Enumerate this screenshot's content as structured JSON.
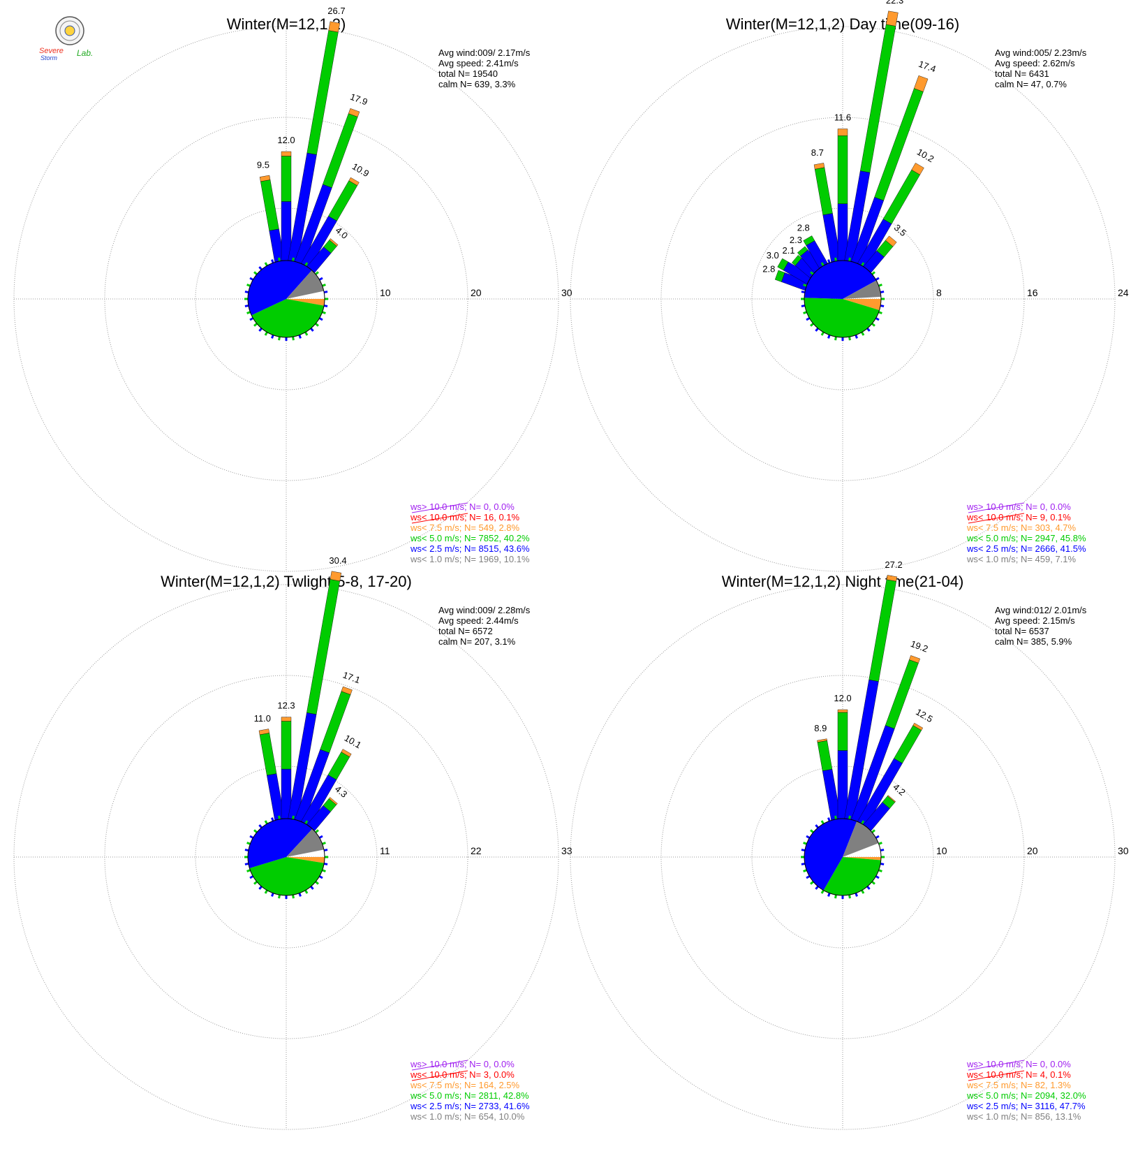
{
  "logo": {
    "line1": "Severe",
    "line2": "Storm",
    "line3": "Lab."
  },
  "colors": {
    "gt10": "#a020f0",
    "lt10": "#ff0000",
    "lt75": "#ff9a2e",
    "lt5": "#00cc00",
    "lt25": "#0000ff",
    "lt1": "#808080",
    "grid": "#999999"
  },
  "chart_data": [
    {
      "type": "windrose",
      "title": "Winter(M=12,1,2)",
      "rings": [
        "10",
        "20",
        "30"
      ],
      "rmax": 30,
      "directions_deg": [
        0,
        10,
        20,
        30,
        40,
        50,
        60
      ],
      "direction_totals": [
        12.0,
        26.7,
        17.9,
        10.9,
        4.0,
        null,
        null
      ],
      "extra_spokes": [
        {
          "deg": -10,
          "value": 9.5
        }
      ],
      "stats": {
        "avg_wind": "Avg wind:009/ 2.17m/s",
        "avg_speed": "Avg speed: 2.41m/s",
        "total": "total N=      19540",
        "calm": "calm N=    639,   3.3%"
      },
      "legend": [
        {
          "label": "ws> 10.0 m/s; N=     0,  0.0%",
          "color": "#a020f0"
        },
        {
          "label": "ws< 10.0 m/s; N=    16,  0.1%",
          "color": "#ff0000"
        },
        {
          "label": "ws<  7.5 m/s; N=   549,  2.8%",
          "color": "#ff9a2e"
        },
        {
          "label": "ws<  5.0 m/s; N=  7852, 40.2%",
          "color": "#00cc00"
        },
        {
          "label": "ws<  2.5 m/s; N=  8515, 43.6%",
          "color": "#0000ff"
        },
        {
          "label": "ws<  1.0 m/s; N=  1969, 10.1%",
          "color": "#808080"
        }
      ],
      "center_pie_percent": {
        "gray": 10.1,
        "orange": 2.8,
        "green": 40.2,
        "blue": 43.6
      }
    },
    {
      "type": "windrose",
      "title": "Winter(M=12,1,2) Day time(09-16)",
      "rings": [
        "8",
        "16",
        "24"
      ],
      "rmax": 24,
      "stats": {
        "avg_wind": "Avg wind:005/ 2.23m/s",
        "avg_speed": "Avg speed: 2.62m/s",
        "total": "total N=        6431",
        "calm": "calm N=      47,   0.7%"
      },
      "legend": [
        {
          "label": "ws> 10.0 m/s; N=     0,  0.0%",
          "color": "#a020f0"
        },
        {
          "label": "ws< 10.0 m/s; N=     9,  0.1%",
          "color": "#ff0000"
        },
        {
          "label": "ws<  7.5 m/s; N=   303,  4.7%",
          "color": "#ff9a2e"
        },
        {
          "label": "ws<  5.0 m/s; N=  2947, 45.8%",
          "color": "#00cc00"
        },
        {
          "label": "ws<  2.5 m/s; N=  2666, 41.5%",
          "color": "#0000ff"
        },
        {
          "label": "ws<  1.0 m/s; N=   459,  7.1%",
          "color": "#808080"
        }
      ],
      "center_pie_percent": {
        "gray": 7.1,
        "orange": 4.7,
        "green": 45.8,
        "blue": 41.5
      }
    },
    {
      "type": "windrose",
      "title": "Winter(M=12,1,2) Twlight(5-8, 17-20)",
      "rings": [
        "11",
        "22",
        "33"
      ],
      "rmax": 33,
      "stats": {
        "avg_wind": "Avg wind:009/ 2.28m/s",
        "avg_speed": "Avg speed: 2.44m/s",
        "total": "total N=        6572",
        "calm": "calm N=    207,   3.1%"
      },
      "legend": [
        {
          "label": "ws> 10.0 m/s; N=     0,  0.0%",
          "color": "#a020f0"
        },
        {
          "label": "ws< 10.0 m/s; N=     3,  0.0%",
          "color": "#ff0000"
        },
        {
          "label": "ws<  7.5 m/s; N=   164,  2.5%",
          "color": "#ff9a2e"
        },
        {
          "label": "ws<  5.0 m/s; N=  2811, 42.8%",
          "color": "#00cc00"
        },
        {
          "label": "ws<  2.5 m/s; N=  2733, 41.6%",
          "color": "#0000ff"
        },
        {
          "label": "ws<  1.0 m/s; N=   654, 10.0%",
          "color": "#808080"
        }
      ],
      "center_pie_percent": {
        "gray": 10.0,
        "orange": 2.5,
        "green": 42.8,
        "blue": 41.6
      }
    },
    {
      "type": "windrose",
      "title": "Winter(M=12,1,2) Night time(21-04)",
      "rings": [
        "10",
        "20",
        "30"
      ],
      "rmax": 30,
      "stats": {
        "avg_wind": "Avg wind:012/ 2.01m/s",
        "avg_speed": "Avg speed: 2.15m/s",
        "total": "total N=        6537",
        "calm": "calm N=    385,   5.9%"
      },
      "legend": [
        {
          "label": "ws> 10.0 m/s; N=     0,  0.0%",
          "color": "#a020f0"
        },
        {
          "label": "ws< 10.0 m/s; N=     4,  0.1%",
          "color": "#ff0000"
        },
        {
          "label": "ws<  7.5 m/s; N=    82,  1.3%",
          "color": "#ff9a2e"
        },
        {
          "label": "ws<  5.0 m/s; N=  2094, 32.0%",
          "color": "#00cc00"
        },
        {
          "label": "ws<  2.5 m/s; N=  3116, 47.7%",
          "color": "#0000ff"
        },
        {
          "label": "ws<  1.0 m/s; N=   856, 13.1%",
          "color": "#808080"
        }
      ],
      "center_pie_percent": {
        "gray": 13.1,
        "orange": 1.3,
        "green": 32.0,
        "blue": 47.7
      }
    }
  ],
  "spokes": [
    [
      {
        "deg": -10,
        "total": 9.5,
        "labeled": true,
        "parts": {
          "blue": 3.5,
          "green": 5.5,
          "orange": 0.5
        }
      },
      {
        "deg": 0,
        "total": 12.0,
        "labeled": true,
        "parts": {
          "blue": 6.5,
          "green": 5.0,
          "orange": 0.5
        }
      },
      {
        "deg": 10,
        "total": 26.7,
        "labeled": true,
        "parts": {
          "blue": 12.0,
          "green": 13.7,
          "orange": 1.0
        }
      },
      {
        "deg": 20,
        "total": 17.9,
        "labeled": true,
        "parts": {
          "blue": 9.0,
          "green": 8.3,
          "orange": 0.6
        }
      },
      {
        "deg": 30,
        "total": 10.9,
        "labeled": true,
        "parts": {
          "blue": 6.0,
          "green": 4.5,
          "orange": 0.4
        }
      },
      {
        "deg": 40,
        "total": 4.0,
        "labeled": true,
        "parts": {
          "blue": 2.8,
          "green": 1.0,
          "orange": 0.2
        }
      }
    ],
    [
      {
        "deg": -70,
        "total": 2.8,
        "labeled": true,
        "parts": {
          "blue": 2.2,
          "green": 0.6
        }
      },
      {
        "deg": -60,
        "total": 3.0,
        "labeled": true,
        "parts": {
          "blue": 2.4,
          "green": 0.6
        }
      },
      {
        "deg": -50,
        "total": 2.1,
        "labeled": true,
        "parts": {
          "blue": 1.7,
          "green": 0.4
        }
      },
      {
        "deg": -40,
        "total": 2.3,
        "labeled": true,
        "parts": {
          "blue": 1.9,
          "green": 0.4
        }
      },
      {
        "deg": -30,
        "total": 2.8,
        "labeled": true,
        "parts": {
          "blue": 2.3,
          "green": 0.5
        }
      },
      {
        "deg": -10,
        "total": 8.7,
        "labeled": true,
        "parts": {
          "blue": 4.2,
          "green": 4.1,
          "orange": 0.4
        }
      },
      {
        "deg": 0,
        "total": 11.6,
        "labeled": true,
        "parts": {
          "blue": 5.0,
          "green": 6.0,
          "orange": 0.6
        }
      },
      {
        "deg": 10,
        "total": 22.3,
        "labeled": true,
        "parts": {
          "blue": 8.0,
          "green": 13.1,
          "orange": 1.2
        }
      },
      {
        "deg": 20,
        "total": 17.4,
        "labeled": true,
        "parts": {
          "blue": 6.0,
          "green": 10.2,
          "orange": 1.2
        }
      },
      {
        "deg": 30,
        "total": 10.2,
        "labeled": true,
        "parts": {
          "blue": 4.5,
          "green": 5.0,
          "orange": 0.7
        }
      },
      {
        "deg": 40,
        "total": 3.5,
        "labeled": true,
        "parts": {
          "blue": 1.8,
          "green": 1.2,
          "orange": 0.5
        }
      }
    ],
    [
      {
        "deg": -10,
        "total": 11.0,
        "labeled": true,
        "parts": {
          "blue": 5.5,
          "green": 5.0,
          "orange": 0.5
        }
      },
      {
        "deg": 0,
        "total": 12.3,
        "labeled": true,
        "parts": {
          "blue": 6.0,
          "green": 5.8,
          "orange": 0.5
        }
      },
      {
        "deg": 10,
        "total": 30.4,
        "labeled": true,
        "parts": {
          "blue": 13.0,
          "green": 16.4,
          "orange": 1.0
        }
      },
      {
        "deg": 20,
        "total": 17.1,
        "labeled": true,
        "parts": {
          "blue": 9.0,
          "green": 7.5,
          "orange": 0.6
        }
      },
      {
        "deg": 30,
        "total": 10.1,
        "labeled": true,
        "parts": {
          "blue": 6.5,
          "green": 3.2,
          "orange": 0.4
        }
      },
      {
        "deg": 40,
        "total": 4.3,
        "labeled": true,
        "parts": {
          "blue": 3.0,
          "green": 1.1,
          "orange": 0.2
        }
      }
    ],
    [
      {
        "deg": -10,
        "total": 8.9,
        "labeled": true,
        "parts": {
          "blue": 5.5,
          "green": 3.2,
          "orange": 0.2
        }
      },
      {
        "deg": 0,
        "total": 12.0,
        "labeled": true,
        "parts": {
          "blue": 7.5,
          "green": 4.2,
          "orange": 0.3
        }
      },
      {
        "deg": 10,
        "total": 27.2,
        "labeled": true,
        "parts": {
          "blue": 15.5,
          "green": 11.2,
          "orange": 0.5
        }
      },
      {
        "deg": 20,
        "total": 19.2,
        "labeled": true,
        "parts": {
          "blue": 11.0,
          "green": 7.7,
          "orange": 0.5
        }
      },
      {
        "deg": 30,
        "total": 12.5,
        "labeled": true,
        "parts": {
          "blue": 8.0,
          "green": 4.2,
          "orange": 0.3
        }
      },
      {
        "deg": 40,
        "total": 4.2,
        "labeled": true,
        "parts": {
          "blue": 3.2,
          "green": 0.9,
          "orange": 0.1
        }
      }
    ]
  ]
}
